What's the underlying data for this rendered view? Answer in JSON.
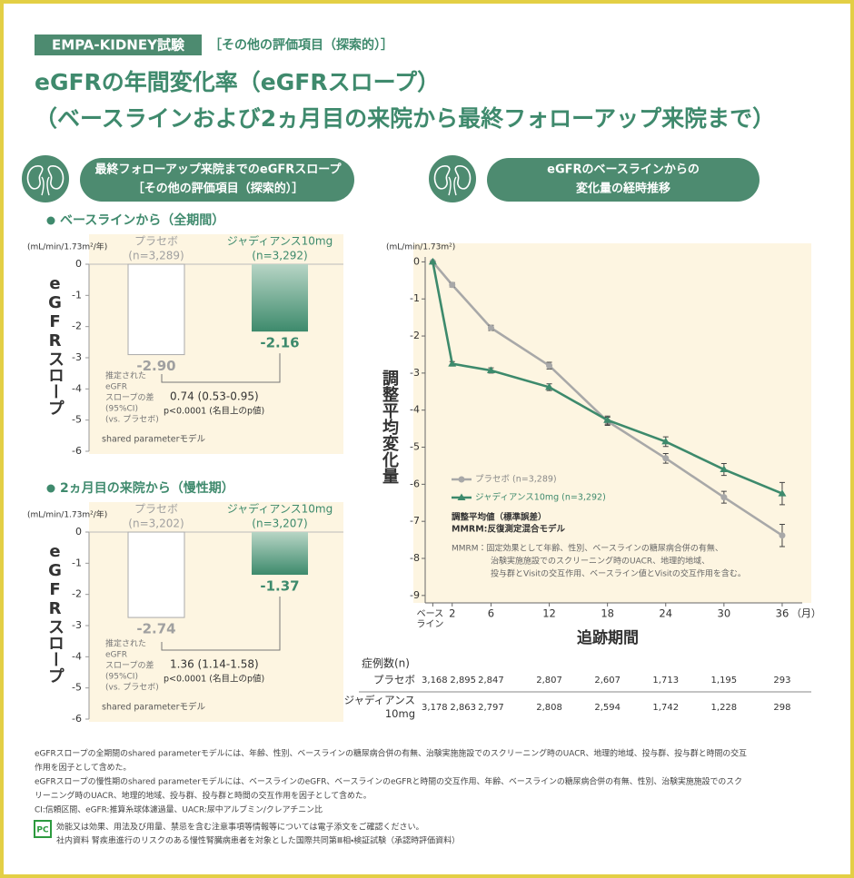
{
  "header": {
    "tag": "EMPA-KIDNEY試験",
    "subtag": "［その他の評価項目（探索的）］",
    "title_lines": [
      "eGFRの年間変化率（eGFRスロープ）",
      "（ベースラインおよび2ヵ月目の来院から最終フォローアップ来院まで）"
    ]
  },
  "left_panel": {
    "heading_lines": [
      "最終フォローアップ来院までのeGFRスロープ",
      "［その他の評価項目（探索的）］"
    ]
  },
  "right_panel": {
    "heading_lines": [
      "eGFRのベースラインからの",
      "変化量の経時推移"
    ]
  },
  "chart_data": [
    {
      "type": "bar",
      "title": "ベースラインから（全期間）",
      "y_unit": "(mL/min/1.73m²/年)",
      "y_label": "eGFRスロープ",
      "categories": [
        "プラセボ",
        "ジャディアンス10mg"
      ],
      "category_n": [
        "(n=3,289)",
        "(n=3,292)"
      ],
      "values": [
        -2.9,
        -2.16
      ],
      "value_labels": [
        "-2.90",
        "-2.16"
      ],
      "colors": [
        "#ffffff",
        "#3d8a6c"
      ],
      "ylim": [
        -6,
        0
      ],
      "yticks": [
        0,
        -1,
        -2,
        -3,
        -4,
        -5,
        -6
      ],
      "difference_note": [
        "推定された",
        "eGFR",
        "スロープの差",
        "(95%CI)",
        "(vs. プラセボ)"
      ],
      "difference": "0.74 (0.53-0.95)",
      "p_value": "p<0.0001 (名目上のp値)",
      "model": "shared parameterモデル"
    },
    {
      "type": "bar",
      "title": "2ヵ月目の来院から（慢性期）",
      "y_unit": "(mL/min/1.73m²/年)",
      "y_label": "eGFRスロープ",
      "categories": [
        "プラセボ",
        "ジャディアンス10mg"
      ],
      "category_n": [
        "(n=3,202)",
        "(n=3,207)"
      ],
      "values": [
        -2.74,
        -1.37
      ],
      "value_labels": [
        "-2.74",
        "-1.37"
      ],
      "colors": [
        "#ffffff",
        "#3d8a6c"
      ],
      "ylim": [
        -6,
        0
      ],
      "yticks": [
        0,
        -1,
        -2,
        -3,
        -4,
        -5,
        -6
      ],
      "difference_note": [
        "推定された",
        "eGFR",
        "スロープの差",
        "(95%CI)",
        "(vs. プラセボ)"
      ],
      "difference": "1.36 (1.14-1.58)",
      "p_value": "p<0.0001 (名目上のp値)",
      "model": "shared parameterモデル"
    },
    {
      "type": "line",
      "y_unit": "(mL/min/1.73m²)",
      "y_label": "調整平均変化量",
      "x_label": "追跡期間",
      "x_unit": "（月）",
      "x": [
        0,
        2,
        6,
        12,
        18,
        24,
        30,
        36
      ],
      "xlim": [
        -2,
        39
      ],
      "xticks": [
        {
          "value": 0,
          "label": "ベース\nライン"
        },
        2,
        6,
        12,
        18,
        24,
        30,
        36
      ],
      "ylim": [
        -9.2,
        0.5
      ],
      "yticks": [
        0,
        -1,
        -2,
        -3,
        -4,
        -5,
        -6,
        -7,
        -8,
        -9
      ],
      "series": [
        {
          "name": "プラセボ (n=3,289)",
          "color": "#a8a8a8",
          "marker": "circle",
          "values": [
            0,
            -0.62,
            -1.78,
            -2.8,
            -4.3,
            -5.3,
            -6.35,
            -7.38
          ],
          "errors": [
            0,
            0.06,
            0.07,
            0.09,
            0.11,
            0.13,
            0.16,
            0.3
          ]
        },
        {
          "name": "ジャディアンス10mg (n=3,292)",
          "color": "#3d8a6c",
          "marker": "triangle",
          "values": [
            0,
            -2.75,
            -2.93,
            -3.38,
            -4.27,
            -4.85,
            -5.6,
            -6.25
          ],
          "errors": [
            0,
            0.06,
            0.07,
            0.09,
            0.11,
            0.13,
            0.16,
            0.3
          ]
        }
      ],
      "annotations": [
        "調整平均値（標準誤差）",
        "MMRM:反復測定混合モデル"
      ],
      "notes": [
        "MMRM：固定効果として年齢、性別、ベースラインの糖尿病合併の有無、",
        "治験実施施設でのスクリーニング時のUACR、地理的地域、",
        "投与群とVisitの交互作用、ベースライン値とVisitの交互作用を含む。"
      ]
    }
  ],
  "table": {
    "title": "症例数(n)",
    "rows": [
      {
        "label": [
          "プラセボ"
        ],
        "values": [
          "3,168",
          "2,895",
          "2,847",
          "2,807",
          "2,607",
          "1,713",
          "1,195",
          "293"
        ]
      },
      {
        "label": [
          "ジャディアンス",
          "10mg"
        ],
        "values": [
          "3,178",
          "2,863",
          "2,797",
          "2,808",
          "2,594",
          "1,742",
          "1,228",
          "298"
        ]
      }
    ]
  },
  "footnotes": [
    "eGFRスロープの全期間のshared parameterモデルには、年齢、性別、ベースラインの糖尿病合併の有無、治験実施施設でのスクリーニング時のUACR、地理的地域、投与群、投与群と時間の交互",
    "作用を因子として含めた。",
    "eGFRスロープの慢性期のshared parameterモデルには、ベースラインのeGFR、ベースラインのeGFRと時間の交互作用、年齢、ベースラインの糖尿病合併の有無、性別、治験実施施設でのスク",
    "リーニング時のUACR、地理的地域、投与群、投与群と時間の交互作用を因子として含めた。",
    "CI:信頼区間、eGFR:推算糸球体濾過量、UACR:尿中アルブミン/クレアチニン比"
  ],
  "footer": {
    "logo": "PC",
    "lines": [
      "効能又は効果、用法及び用量、禁忌を含む注意事項等情報等については電子添文をご確認ください。",
      "社内資料 腎疾患進行のリスクのある慢性腎臓病患者を対象とした国際共同第Ⅲ相・検証試験（承認時評価資料）"
    ]
  }
}
